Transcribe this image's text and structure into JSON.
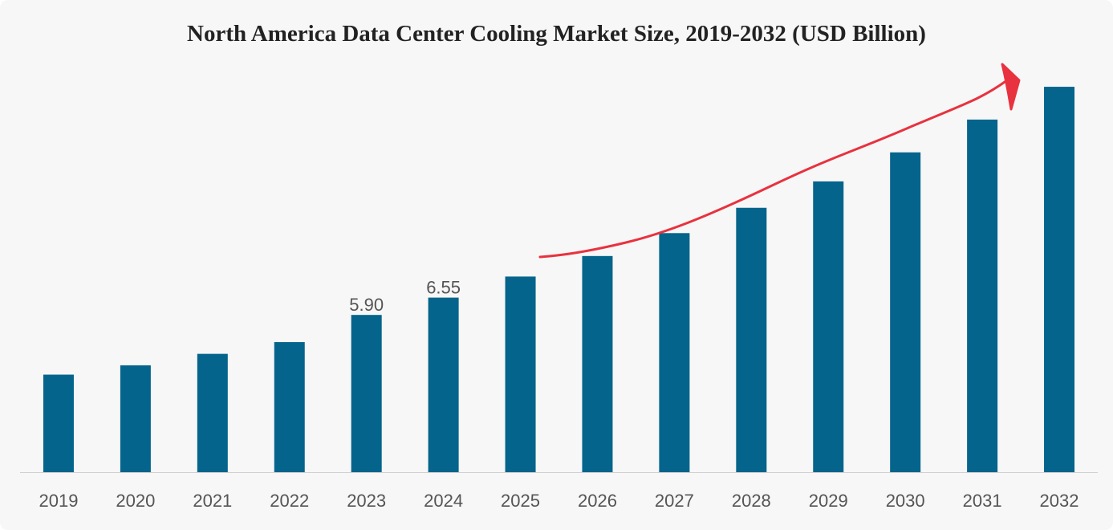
{
  "chart_data": {
    "type": "bar",
    "title": "North America Data Center Cooling Market Size, 2019-2032 (USD Billion)",
    "categories": [
      "2019",
      "2020",
      "2021",
      "2022",
      "2023",
      "2024",
      "2025",
      "2026",
      "2027",
      "2028",
      "2029",
      "2030",
      "2031",
      "2032"
    ],
    "values": [
      3.66,
      4.01,
      4.44,
      4.88,
      5.9,
      6.55,
      7.34,
      8.11,
      8.97,
      9.92,
      10.91,
      12.0,
      13.23,
      14.46
    ],
    "data_labels": {
      "4": "5.90",
      "5": "6.55"
    },
    "bar_color": "#05648b",
    "annotation": {
      "type": "hand-drawn growth arrow",
      "color": "#e8323f"
    },
    "xlabel": "",
    "ylabel": "",
    "ylim": [
      0,
      16.3
    ],
    "grid": false,
    "legend": "none"
  }
}
